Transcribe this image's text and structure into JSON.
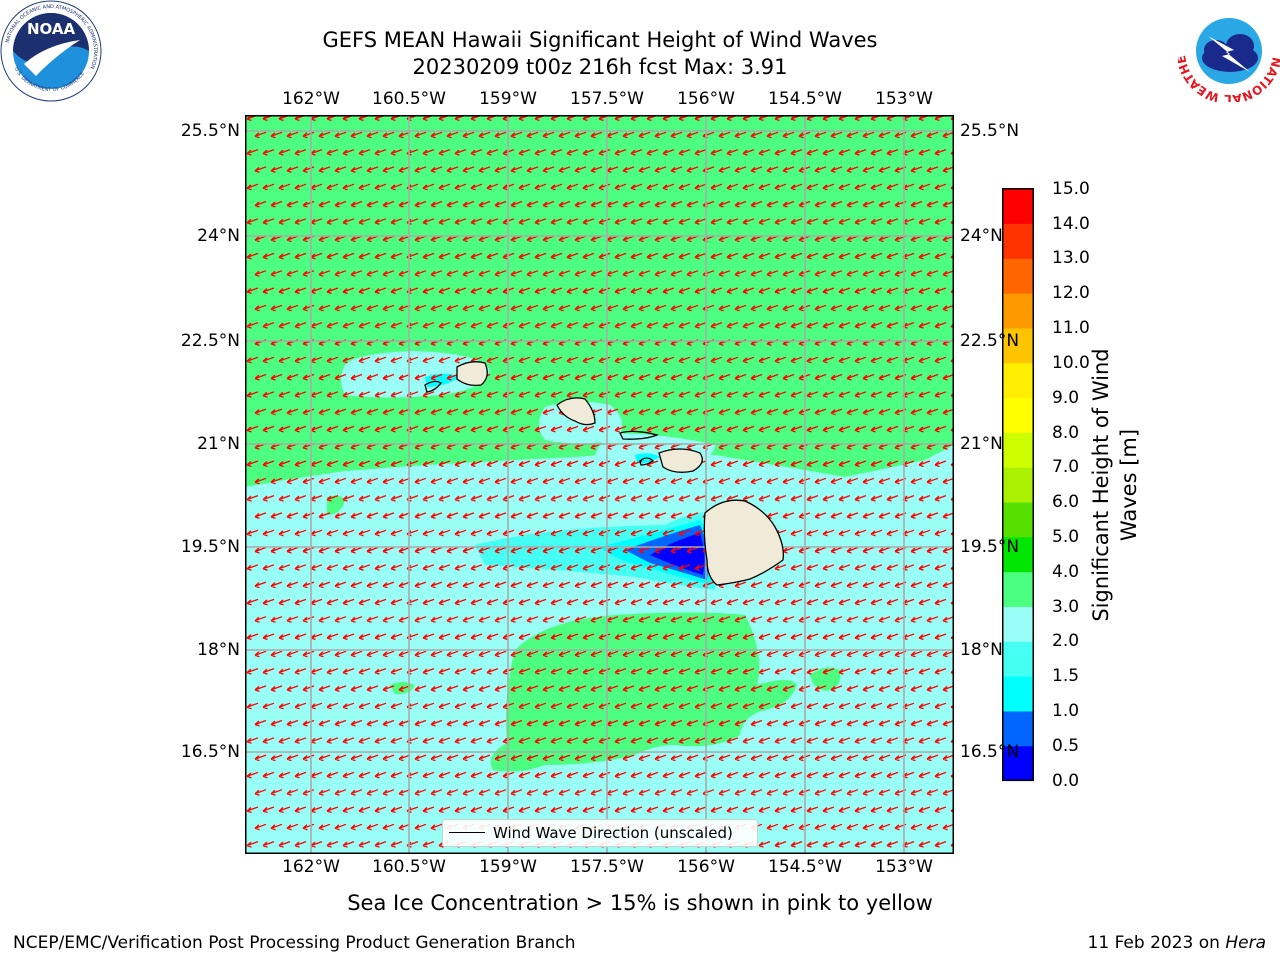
{
  "title": {
    "line1": "GEFS MEAN Hawaii Significant Height of Wind Waves",
    "line2": "20230209 t00z 216h fcst   Max: 3.91"
  },
  "lon_ticks": [
    "162°W",
    "160.5°W",
    "159°W",
    "157.5°W",
    "156°W",
    "154.5°W",
    "153°W"
  ],
  "lat_ticks": [
    "25.5°N",
    "24°N",
    "22.5°N",
    "21°N",
    "19.5°N",
    "18°N",
    "16.5°N"
  ],
  "colorbar": {
    "label_line1": "Significant Height of Wind",
    "label_line2": "Waves [m]",
    "ticks": [
      "0.0",
      "0.5",
      "1.0",
      "1.5",
      "2.0",
      "3.0",
      "4.0",
      "5.0",
      "6.0",
      "7.0",
      "8.0",
      "9.0",
      "10.0",
      "11.0",
      "12.0",
      "13.0",
      "14.0",
      "15.0"
    ],
    "colors": [
      "#0000ff",
      "#0066ff",
      "#00ffff",
      "#44fff2",
      "#99fff6",
      "#4dff80",
      "#00e600",
      "#55e000",
      "#aaf000",
      "#ccff00",
      "#ffff00",
      "#ffee00",
      "#ffc400",
      "#ff9900",
      "#ff6600",
      "#ff3300",
      "#ff0000"
    ]
  },
  "map_colors": {
    "green": "#4dff80",
    "lightcyan": "#99fff6",
    "cyan": "#44fff2",
    "blue": "#0000ff",
    "land": "#efebd8",
    "arrow": "#ff0000",
    "grid": "#aaaaaa"
  },
  "legend": {
    "text": "Wind Wave Direction (unscaled)"
  },
  "logos": {
    "noaa": "NOAA",
    "noaa_ring": "NATIONAL OCEANIC AND ATMOSPHERIC ADMINISTRATION",
    "noaa_ring_bottom": "U.S. DEPARTMENT OF COMMERCE",
    "nws_ring": "NATIONAL WEATHER SERVICE"
  },
  "note": "Sea Ice Concentration > 15% is shown in pink to yellow",
  "footer": {
    "left": "NCEP/EMC/Verification Post Processing Product Generation Branch",
    "right_prefix": "11 Feb 2023 on ",
    "right_host": "Hera"
  }
}
